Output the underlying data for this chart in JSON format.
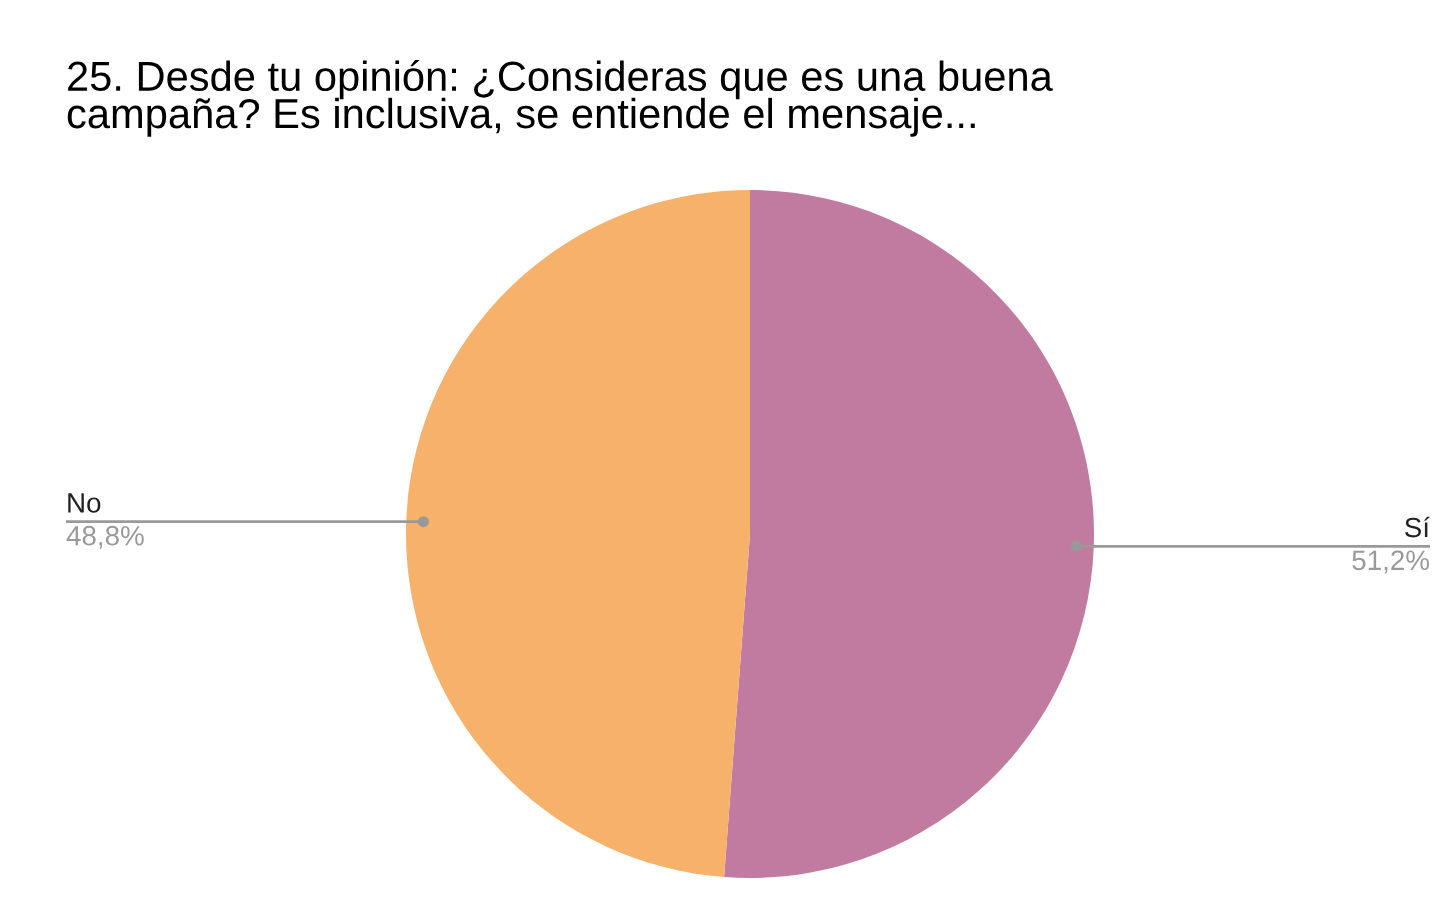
{
  "chart_data": {
    "type": "pie",
    "title": "25. Desde tu opinión: ¿Consideras que es una buena\ncampaña? Es inclusiva, se entiende el mensaje...",
    "categories": [
      "Sí",
      "No"
    ],
    "values": [
      51.2,
      48.8
    ],
    "colors": [
      "#c27ba0",
      "#f6b26b"
    ],
    "value_labels": [
      "51,2%",
      "48,8%"
    ],
    "legend": false
  }
}
